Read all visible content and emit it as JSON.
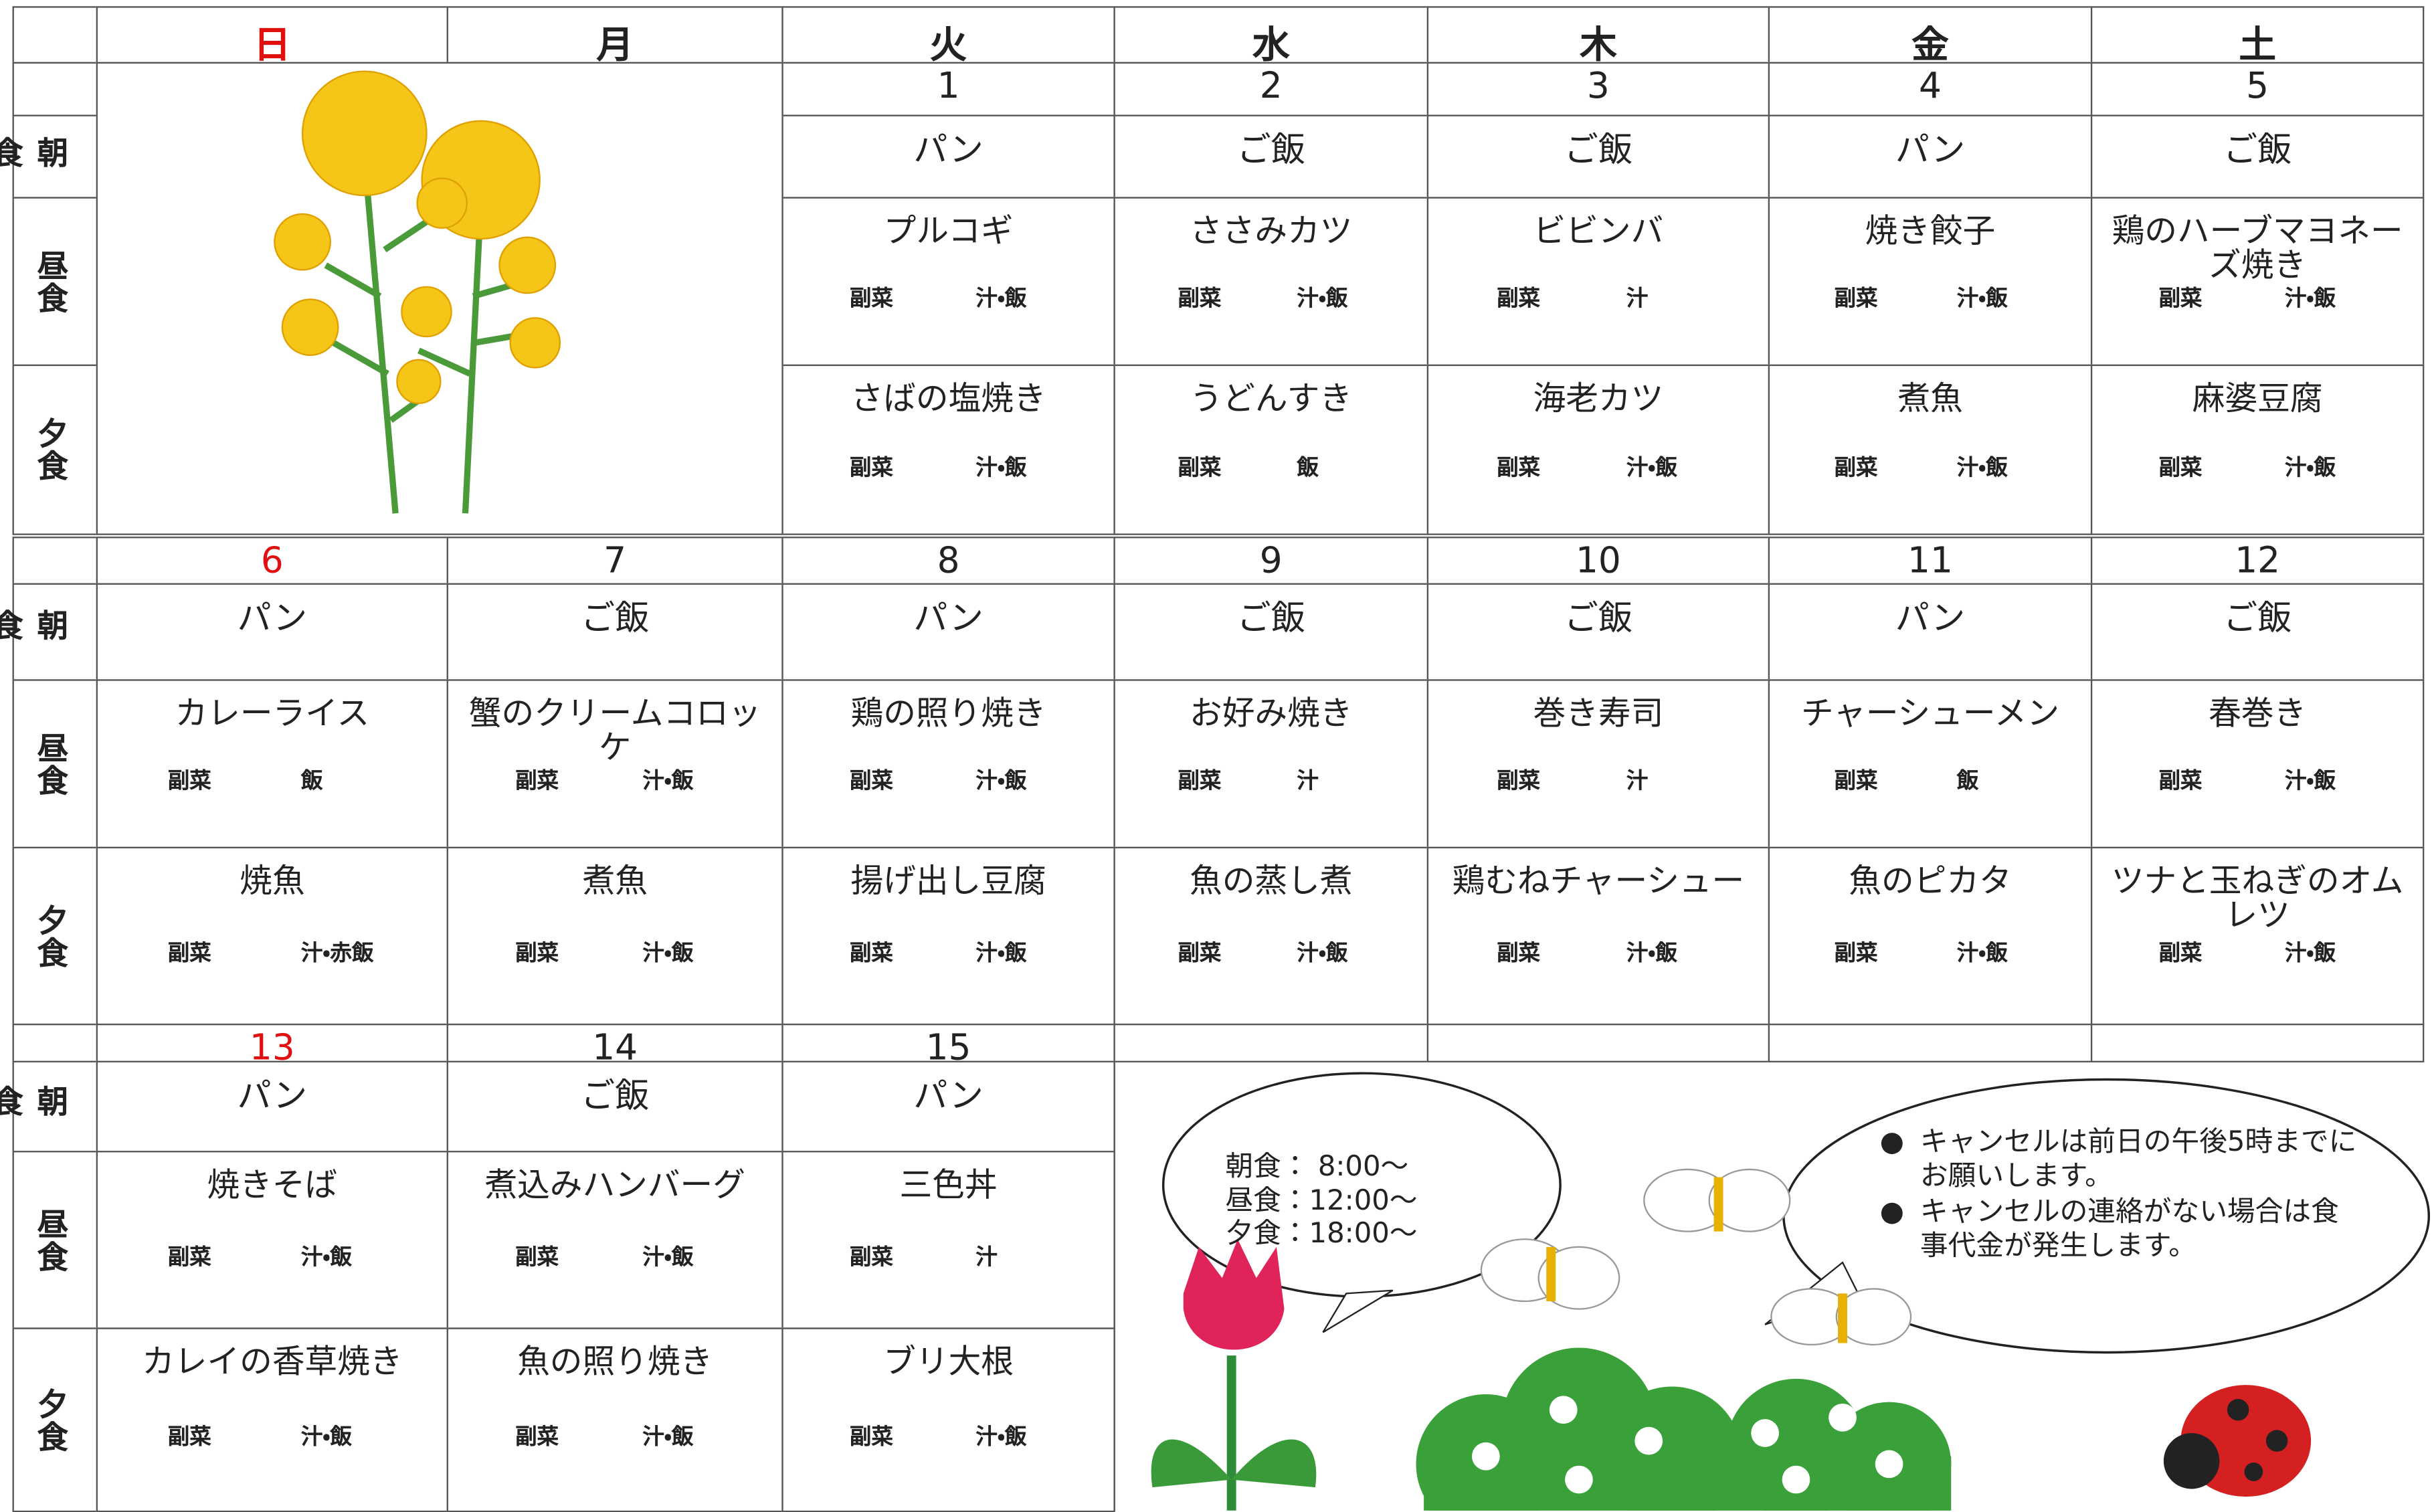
{
  "header": {
    "days": [
      "日",
      "月",
      "火",
      "水",
      "木",
      "金",
      "土"
    ]
  },
  "meal_labels": [
    "朝食",
    "昼食",
    "夕食"
  ],
  "weeks": [
    {
      "days": [
        {
          "date": 1,
          "breakfast": "パン",
          "lunch": {
            "main": "プルコギ",
            "sides": [
              "副菜",
              "汁・飯"
            ]
          },
          "dinner": {
            "main": "さばの塩焼き",
            "sides": [
              "副菜",
              "汁・飯"
            ]
          }
        },
        {
          "date": 2,
          "breakfast": "ご飯",
          "lunch": {
            "main": "ささみカツ",
            "sides": [
              "副菜",
              "汁・飯"
            ]
          },
          "dinner": {
            "main": "うどんすき",
            "sides": [
              "副菜",
              "飯"
            ]
          }
        },
        {
          "date": 3,
          "breakfast": "ご飯",
          "lunch": {
            "main": "ビビンバ",
            "sides": [
              "副菜",
              "汁"
            ]
          },
          "dinner": {
            "main": "海老カツ",
            "sides": [
              "副菜",
              "汁・飯"
            ]
          }
        },
        {
          "date": 4,
          "breakfast": "パン",
          "lunch": {
            "main": "焼き餃子",
            "sides": [
              "副菜",
              "汁・飯"
            ]
          },
          "dinner": {
            "main": "煮魚",
            "sides": [
              "副菜",
              "汁・飯"
            ]
          }
        },
        {
          "date": 5,
          "breakfast": "ご飯",
          "lunch": {
            "main": "鶏のハーブマヨネーズ焼き",
            "sides": [
              "副菜",
              "汁・飯"
            ]
          },
          "dinner": {
            "main": "麻婆豆腐",
            "sides": [
              "副菜",
              "汁・飯"
            ]
          }
        }
      ]
    },
    {
      "days": [
        {
          "date": 6,
          "breakfast": "パン",
          "lunch": {
            "main": "カレーライス",
            "sides": [
              "副菜",
              "飯"
            ]
          },
          "dinner": {
            "main": "焼魚",
            "sides": [
              "副菜",
              "汁・赤飯"
            ]
          }
        },
        {
          "date": 7,
          "breakfast": "ご飯",
          "lunch": {
            "main": "蟹のクリームコロッケ",
            "sides": [
              "副菜",
              "汁・飯"
            ]
          },
          "dinner": {
            "main": "煮魚",
            "sides": [
              "副菜",
              "汁・飯"
            ]
          }
        },
        {
          "date": 8,
          "breakfast": "パン",
          "lunch": {
            "main": "鶏の照り焼き",
            "sides": [
              "副菜",
              "汁・飯"
            ]
          },
          "dinner": {
            "main": "揚げ出し豆腐",
            "sides": [
              "副菜",
              "汁・飯"
            ]
          }
        },
        {
          "date": 9,
          "breakfast": "ご飯",
          "lunch": {
            "main": "お好み焼き",
            "sides": [
              "副菜",
              "汁"
            ]
          },
          "dinner": {
            "main": "魚の蒸し煮",
            "sides": [
              "副菜",
              "汁・飯"
            ]
          }
        },
        {
          "date": 10,
          "breakfast": "ご飯",
          "lunch": {
            "main": "巻き寿司",
            "sides": [
              "副菜",
              "汁"
            ]
          },
          "dinner": {
            "main": "鶏むねチャーシュー",
            "sides": [
              "副菜",
              "汁・飯"
            ]
          }
        },
        {
          "date": 11,
          "breakfast": "パン",
          "lunch": {
            "main": "チャーシューメン",
            "sides": [
              "副菜",
              "飯"
            ]
          },
          "dinner": {
            "main": "魚のピカタ",
            "sides": [
              "副菜",
              "汁・飯"
            ]
          }
        },
        {
          "date": 12,
          "breakfast": "ご飯",
          "lunch": {
            "main": "春巻き",
            "sides": [
              "副菜",
              "汁・飯"
            ]
          },
          "dinner": {
            "main": "ツナと玉ねぎのオムレツ",
            "sides": [
              "副菜",
              "汁・飯"
            ]
          }
        }
      ]
    },
    {
      "days": [
        {
          "date": 13,
          "breakfast": "パン",
          "lunch": {
            "main": "焼きそば",
            "sides": [
              "副菜",
              "汁・飯"
            ]
          },
          "dinner": {
            "main": "カレイの香草焼き",
            "sides": [
              "副菜",
              "汁・飯"
            ]
          }
        },
        {
          "date": 14,
          "breakfast": "ご飯",
          "lunch": {
            "main": "煮込みハンバーグ",
            "sides": [
              "副菜",
              "汁・飯"
            ]
          },
          "dinner": {
            "main": "魚の照り焼き",
            "sides": [
              "副菜",
              "汁・飯"
            ]
          }
        },
        {
          "date": 15,
          "breakfast": "パン",
          "lunch": {
            "main": "三色丼",
            "sides": [
              "副菜",
              "汁"
            ]
          },
          "dinner": {
            "main": "ブリ大根",
            "sides": [
              "副菜",
              "汁・飯"
            ]
          }
        }
      ]
    }
  ],
  "notes": {
    "times": [
      "朝食： 8:00～",
      "昼食：12:00～",
      "夕食：18:00～"
    ],
    "bullets": [
      "キャンセルは前日の午後5時までにお願いします。",
      "キャンセルの連絡がない場合は食事代金が発生します。"
    ]
  }
}
